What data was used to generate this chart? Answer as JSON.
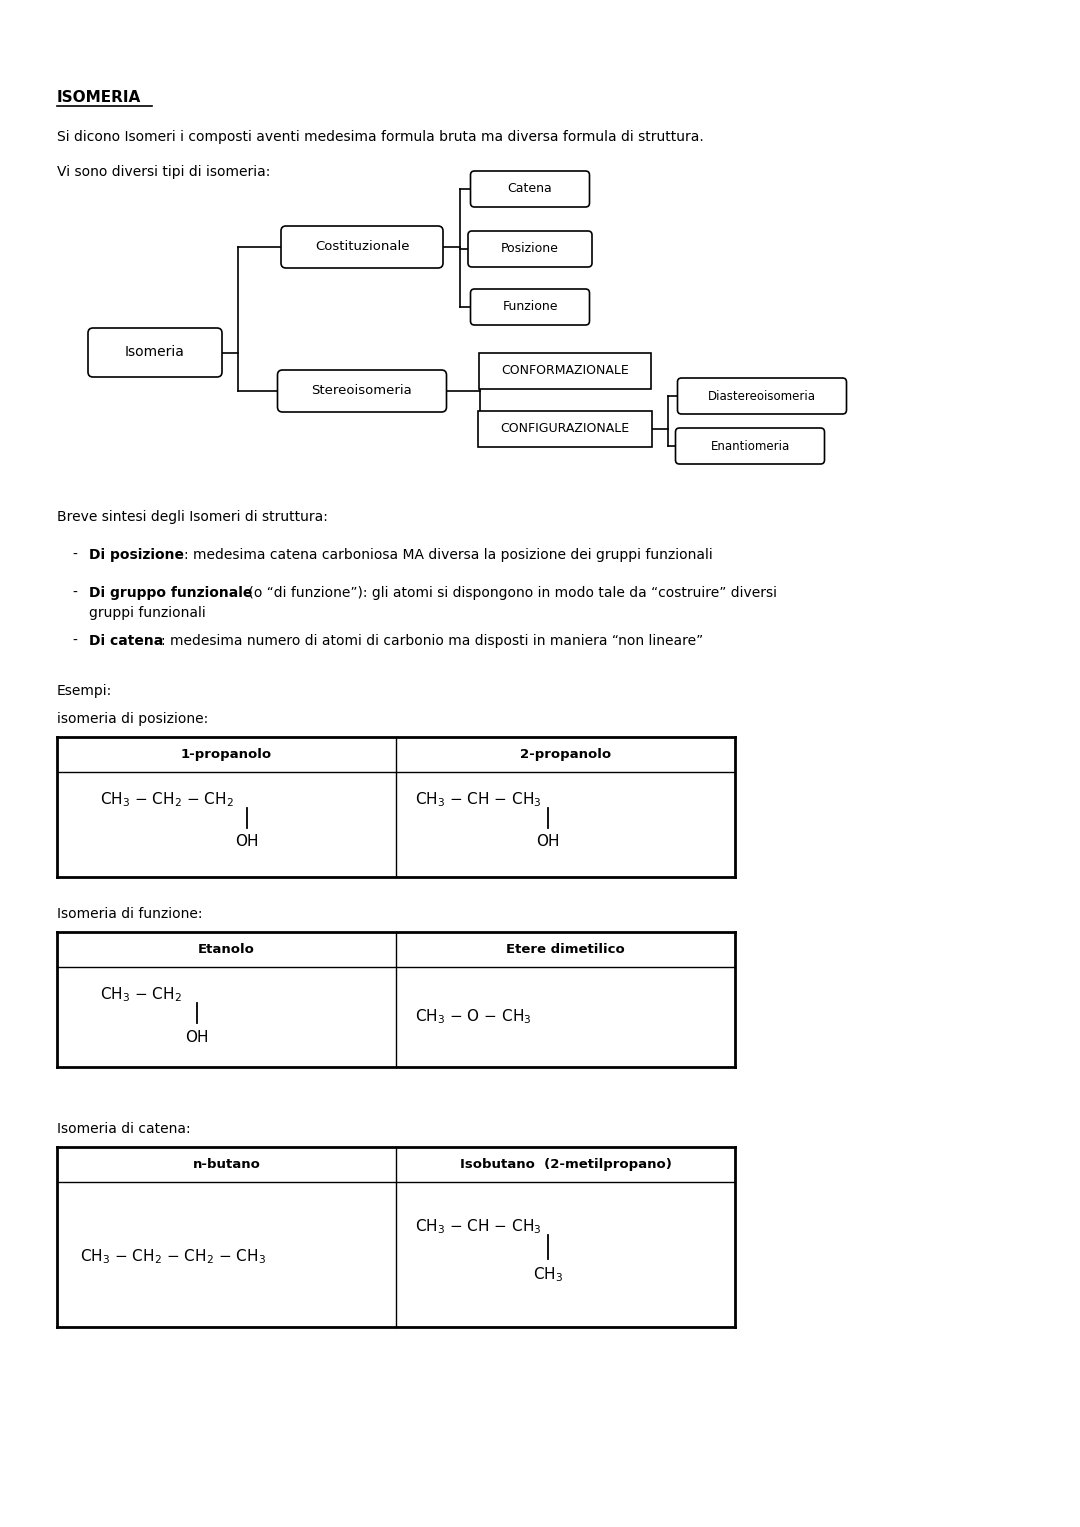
{
  "title": "ISOMERIA",
  "intro1": "Si dicono Isomeri i composti aventi medesima formula bruta ma diversa formula di struttura.",
  "intro2": "Vi sono diversi tipi di isomeria:",
  "bullet_header": "Breve sintesi degli Isomeri di struttura:",
  "bullets": [
    [
      "Di posizione",
      ": medesima catena carboniosa MA diversa la posizione dei gruppi funzionali"
    ],
    [
      "Di gruppo funzionale",
      " (o “di funzione”): gli atomi si dispongono in modo tale da “costruire” diversi gruppi funzionali"
    ],
    [
      "Di catena",
      ": medesima numero di atomi di carbonio ma disposti in maniera “non lineare”"
    ]
  ],
  "esempi_label": "Esempi:",
  "table1_label": "isomeria di posizione:",
  "table2_label": "Isomeria di funzione:",
  "table3_label": "Isomeria di catena:",
  "bg_color": "#ffffff",
  "text_color": "#000000",
  "font_size_title": 11,
  "font_size_body": 10,
  "font_size_chem": 12
}
